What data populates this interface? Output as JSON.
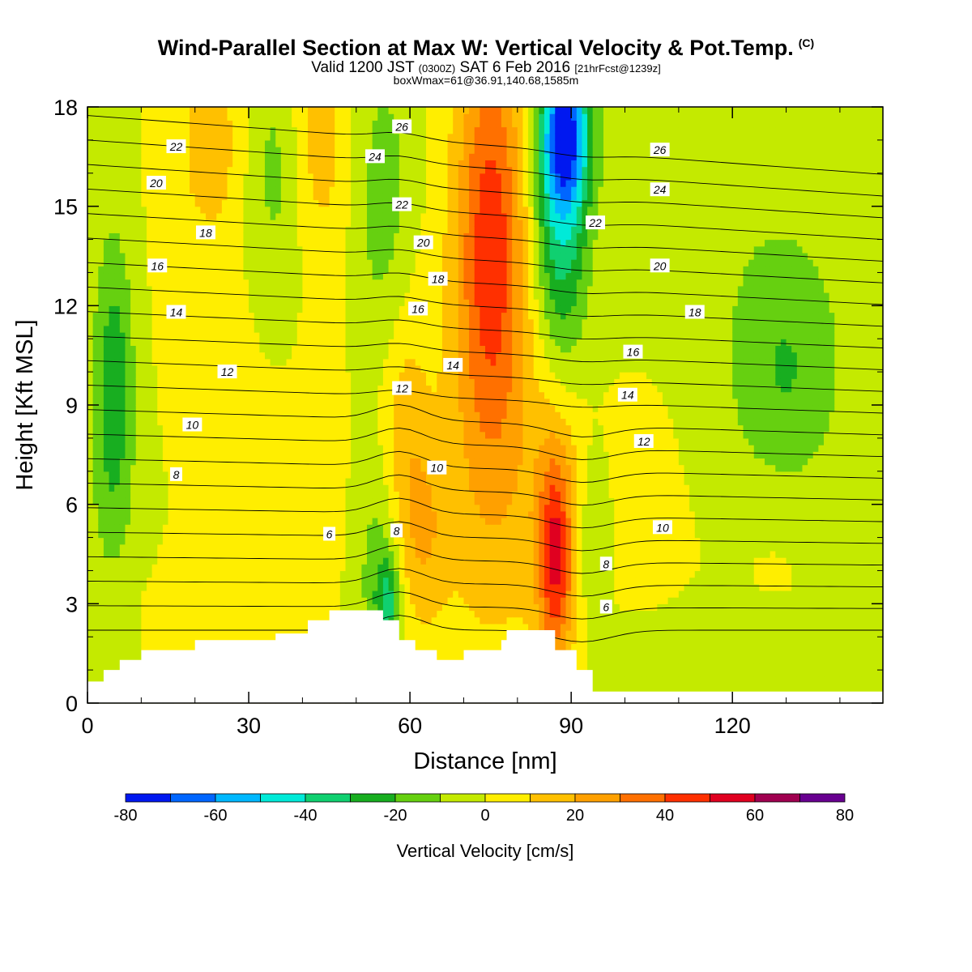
{
  "header": {
    "title": "Wind-Parallel Section at Max W: Vertical Velocity & Pot.Temp.",
    "copyright": "(C)",
    "valid_prefix": "Valid 1200 JST",
    "valid_utc": "(0300Z)",
    "valid_date": "SAT 6 Feb 2016",
    "forecast": "[21hrFcst@1239z]",
    "box_info": "boxWmax=61@36.91,140.68,1585m"
  },
  "chart_data": {
    "type": "heatmap",
    "xlabel": "Distance [nm]",
    "ylabel": "Height [Kft MSL]",
    "xlim": [
      0,
      148
    ],
    "ylim": [
      0,
      18
    ],
    "x_ticks": [
      0,
      30,
      60,
      90,
      120
    ],
    "y_ticks": [
      0,
      3,
      6,
      9,
      12,
      15,
      18
    ],
    "colorbar": {
      "label": "Vertical Velocity [cm/s]",
      "boundaries": [
        -80,
        -70,
        -60,
        -50,
        -40,
        -30,
        -20,
        -10,
        0,
        10,
        20,
        30,
        40,
        50,
        60,
        70,
        80
      ],
      "tick_labels": [
        "-80",
        "-60",
        "-40",
        "-20",
        "0",
        "20",
        "40",
        "60",
        "80"
      ],
      "colors": [
        "#0018f0",
        "#0066ff",
        "#00b8ff",
        "#00ead8",
        "#10d070",
        "#18ae20",
        "#66d010",
        "#c4ea00",
        "#ffee00",
        "#ffc000",
        "#ffa000",
        "#ff7000",
        "#ff3000",
        "#e00020",
        "#a00050",
        "#680090"
      ]
    },
    "background_value": 0,
    "features": [
      {
        "x": 5,
        "y": 9.5,
        "sx": 2.5,
        "sy": 3.2,
        "value": -24
      },
      {
        "x": 3,
        "y": 7,
        "sx": 8,
        "sy": 10,
        "value": -7
      },
      {
        "x": 35,
        "y": 16,
        "sx": 4,
        "sy": 3,
        "value": -15
      },
      {
        "x": 55,
        "y": 15,
        "sx": 4,
        "sy": 3.5,
        "value": -15
      },
      {
        "x": 54,
        "y": 4,
        "sx": 3,
        "sy": 2.5,
        "value": -17
      },
      {
        "x": 56,
        "y": 3,
        "sx": 1.5,
        "sy": 1,
        "value": -28
      },
      {
        "x": 94,
        "y": 4.8,
        "sx": 2,
        "sy": 1.8,
        "value": -15
      },
      {
        "x": 130,
        "y": 10,
        "sx": 7,
        "sy": 2.5,
        "value": -16
      },
      {
        "x": 75,
        "y": 14.5,
        "sx": 4.5,
        "sy": 4.5,
        "value": 38
      },
      {
        "x": 76,
        "y": 9,
        "sx": 7,
        "sy": 6,
        "value": 16
      },
      {
        "x": 87,
        "y": 4.4,
        "sx": 2.2,
        "sy": 2.3,
        "value": 40
      },
      {
        "x": 88,
        "y": 5.5,
        "sx": 4,
        "sy": 4,
        "value": 12
      },
      {
        "x": 59,
        "y": 8,
        "sx": 3,
        "sy": 3,
        "value": 15
      },
      {
        "x": 63,
        "y": 5,
        "sx": 3,
        "sy": 2,
        "value": 14
      },
      {
        "x": 43,
        "y": 17,
        "sx": 4,
        "sy": 2.5,
        "value": 15
      },
      {
        "x": 23,
        "y": 17,
        "sx": 4,
        "sy": 2,
        "value": 14
      },
      {
        "x": 88,
        "y": 15,
        "sx": 3.5,
        "sy": 3.5,
        "value": -40
      },
      {
        "x": 89,
        "y": 17.2,
        "sx": 3,
        "sy": 1.5,
        "value": -52
      },
      {
        "x": 115,
        "y": 15,
        "sx": 25,
        "sy": 8,
        "value": -7
      },
      {
        "x": 15,
        "y": 13,
        "sx": 18,
        "sy": 6,
        "value": 4
      },
      {
        "x": 70,
        "y": 6,
        "sx": 20,
        "sy": 4,
        "value": 3
      },
      {
        "x": 105,
        "y": 8,
        "sx": 9,
        "sy": 7,
        "value": 5
      },
      {
        "x": 128,
        "y": 4,
        "sx": 6,
        "sy": 2,
        "value": 4
      },
      {
        "x": 10,
        "y": 2.5,
        "sx": 14,
        "sy": 1.5,
        "value": 4
      },
      {
        "x": 120,
        "y": 1.2,
        "sx": 26,
        "sy": 1.2,
        "value": -7
      }
    ],
    "terrain": [
      [
        0,
        0.65
      ],
      [
        3,
        0.65
      ],
      [
        3,
        1
      ],
      [
        6,
        1
      ],
      [
        6,
        1.3
      ],
      [
        10,
        1.3
      ],
      [
        10,
        1.6
      ],
      [
        20,
        1.6
      ],
      [
        20,
        1.9
      ],
      [
        35,
        1.9
      ],
      [
        35,
        2.1
      ],
      [
        41,
        2.1
      ],
      [
        41,
        2.5
      ],
      [
        45,
        2.5
      ],
      [
        45,
        2.8
      ],
      [
        55,
        2.8
      ],
      [
        55,
        2.5
      ],
      [
        58,
        2.5
      ],
      [
        58,
        1.9
      ],
      [
        61,
        1.9
      ],
      [
        61,
        1.6
      ],
      [
        65,
        1.6
      ],
      [
        65,
        1.3
      ],
      [
        70,
        1.3
      ],
      [
        70,
        1.6
      ],
      [
        77,
        1.6
      ],
      [
        77,
        1.9
      ],
      [
        78,
        1.9
      ],
      [
        78,
        2.2
      ],
      [
        87,
        2.2
      ],
      [
        87,
        1.6
      ],
      [
        91,
        1.6
      ],
      [
        91,
        1
      ],
      [
        94,
        1
      ],
      [
        94,
        0.35
      ],
      [
        148,
        0.35
      ]
    ],
    "contour_labels": [
      {
        "text": "22",
        "x": 16.5,
        "y": 16.8
      },
      {
        "text": "20",
        "x": 12.8,
        "y": 15.7
      },
      {
        "text": "18",
        "x": 22,
        "y": 14.2
      },
      {
        "text": "16",
        "x": 13,
        "y": 13.2
      },
      {
        "text": "14",
        "x": 16.5,
        "y": 11.8
      },
      {
        "text": "12",
        "x": 26,
        "y": 10
      },
      {
        "text": "10",
        "x": 19.5,
        "y": 8.4
      },
      {
        "text": "8",
        "x": 16.5,
        "y": 6.9
      },
      {
        "text": "6",
        "x": 45,
        "y": 5.1
      },
      {
        "text": "26",
        "x": 58.5,
        "y": 17.4
      },
      {
        "text": "24",
        "x": 53.5,
        "y": 16.5
      },
      {
        "text": "22",
        "x": 58.5,
        "y": 15.05
      },
      {
        "text": "20",
        "x": 62.5,
        "y": 13.9
      },
      {
        "text": "18",
        "x": 65.2,
        "y": 12.8
      },
      {
        "text": "16",
        "x": 61.5,
        "y": 11.9
      },
      {
        "text": "14",
        "x": 68,
        "y": 10.2
      },
      {
        "text": "12",
        "x": 58.5,
        "y": 9.5
      },
      {
        "text": "10",
        "x": 65,
        "y": 7.1
      },
      {
        "text": "8",
        "x": 57.5,
        "y": 5.2
      },
      {
        "text": "26",
        "x": 106.5,
        "y": 16.7
      },
      {
        "text": "24",
        "x": 106.5,
        "y": 15.5
      },
      {
        "text": "22",
        "x": 94.5,
        "y": 14.5
      },
      {
        "text": "20",
        "x": 106.5,
        "y": 13.2
      },
      {
        "text": "18",
        "x": 113,
        "y": 11.8
      },
      {
        "text": "16",
        "x": 101.5,
        "y": 10.6
      },
      {
        "text": "14",
        "x": 100.5,
        "y": 9.3
      },
      {
        "text": "12",
        "x": 103.5,
        "y": 7.9
      },
      {
        "text": "10",
        "x": 107,
        "y": 5.3
      },
      {
        "text": "8",
        "x": 96.5,
        "y": 4.2
      },
      {
        "text": "6",
        "x": 96.5,
        "y": 2.9
      }
    ],
    "theta_levels": [
      6,
      7,
      8,
      9,
      10,
      11,
      12,
      13,
      14,
      15,
      16,
      17,
      18,
      19,
      20,
      21,
      22,
      23,
      24,
      25,
      26,
      27
    ]
  }
}
